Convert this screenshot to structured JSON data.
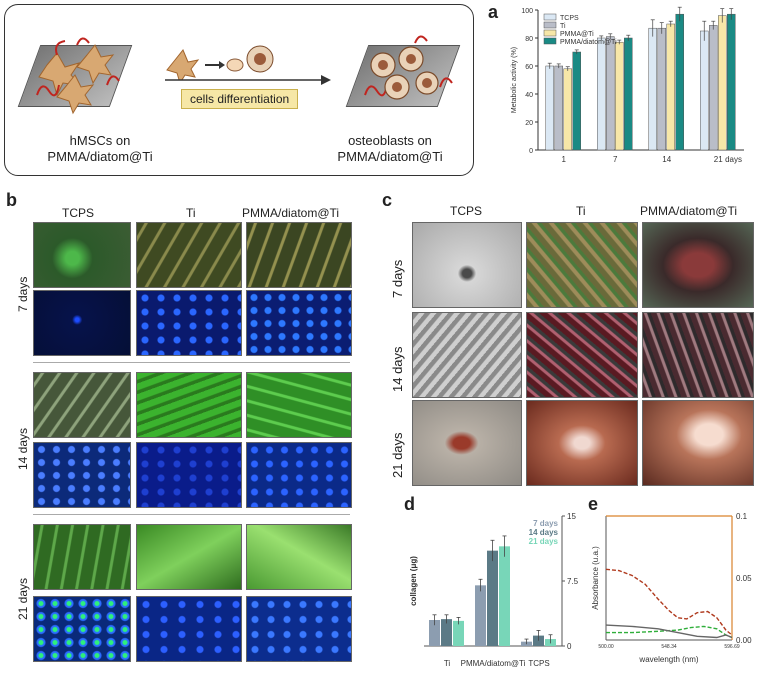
{
  "panels": {
    "a": "a",
    "b": "b",
    "c": "c",
    "d": "d",
    "e": "e"
  },
  "schematic": {
    "left_caption_line1": "hMSCs on",
    "left_caption_line2": "PMMA/diatom@Ti",
    "right_caption_line1": "osteoblasts on",
    "right_caption_line2": "PMMA/diatom@Ti",
    "process_label": "cells differentiation"
  },
  "panel_b": {
    "columns": [
      "TCPS",
      "Ti",
      "PMMA/diatom@Ti"
    ],
    "rows": [
      "7 days",
      "14 days",
      "21 days"
    ]
  },
  "panel_c": {
    "columns": [
      "TCPS",
      "Ti",
      "PMMA/diatom@Ti"
    ],
    "rows": [
      "7 days",
      "14 days",
      "21 days"
    ]
  },
  "chart_data": [
    {
      "id": "a",
      "type": "bar",
      "ylabel": "Metabolic activity (%)",
      "ylim": [
        0,
        100
      ],
      "yticks": [
        0,
        20,
        40,
        60,
        80,
        100
      ],
      "categories": [
        "1",
        "7",
        "14",
        "21"
      ],
      "x_unit": "days",
      "legend_position": "top-left",
      "series": [
        {
          "name": "TCPS",
          "color": "#dbe8f4",
          "values": [
            60,
            80,
            87,
            85
          ],
          "err": [
            2,
            1.5,
            6,
            7
          ]
        },
        {
          "name": "Ti",
          "color": "#b9bdc8",
          "values": [
            60,
            81,
            87,
            89
          ],
          "err": [
            1.5,
            2,
            4,
            3
          ]
        },
        {
          "name": "PMMA@Ti",
          "color": "#f7e7a8",
          "values": [
            58,
            77,
            90,
            96
          ],
          "err": [
            1.5,
            1.5,
            2,
            5
          ]
        },
        {
          "name": "PMMA/diatom@Ti",
          "color": "#1a8a84",
          "values": [
            70,
            80,
            97,
            97
          ],
          "err": [
            1.5,
            2,
            5,
            4
          ]
        }
      ]
    },
    {
      "id": "d",
      "type": "bar",
      "ylabel": "collagen (μg)",
      "ylim": [
        0,
        15
      ],
      "yticks": [
        "0",
        "7.5",
        "15"
      ],
      "categories": [
        "Ti",
        "PMMA/diatom@Ti",
        "TCPS"
      ],
      "legend_position": "top-right",
      "series": [
        {
          "name": "7 days",
          "color": "#8c9db0",
          "values": [
            3.0,
            7.0,
            0.5
          ],
          "err": [
            0.6,
            0.7,
            0.3
          ]
        },
        {
          "name": "14 days",
          "color": "#5b7a86",
          "values": [
            3.1,
            11.0,
            1.2
          ],
          "err": [
            0.5,
            1.2,
            0.6
          ]
        },
        {
          "name": "21 days",
          "color": "#78d6b8",
          "values": [
            2.9,
            11.5,
            0.8
          ],
          "err": [
            0.4,
            1.2,
            0.5
          ]
        }
      ]
    },
    {
      "id": "e",
      "type": "line",
      "ylabel": "Absorbance (u.a.)",
      "xlabel": "wavelength (nm)",
      "x_ticks": [
        "500.00",
        "548.34",
        "596.69"
      ],
      "xlim": [
        500,
        596.69
      ],
      "ylim": [
        0,
        0.1
      ],
      "yticks": [
        "0.00",
        "0.05",
        "0.1"
      ],
      "series": [
        {
          "color": "#b03a1e",
          "style": "dashed",
          "x": [
            500,
            510,
            520,
            530,
            540,
            548,
            555,
            562,
            570,
            578,
            585,
            592,
            596.69
          ],
          "y": [
            0.057,
            0.056,
            0.052,
            0.045,
            0.033,
            0.024,
            0.018,
            0.017,
            0.022,
            0.023,
            0.018,
            0.008,
            0.004
          ]
        },
        {
          "color": "#2fae3a",
          "style": "dashed",
          "x": [
            500,
            520,
            540,
            555,
            565,
            575,
            585,
            592,
            596.69
          ],
          "y": [
            0.006,
            0.006,
            0.007,
            0.008,
            0.01,
            0.011,
            0.009,
            0.004,
            0.002
          ]
        },
        {
          "color": "#666666",
          "style": "solid",
          "x": [
            500,
            520,
            540,
            555,
            570,
            585,
            592,
            596.69
          ],
          "y": [
            0.012,
            0.011,
            0.009,
            0.006,
            0.003,
            0.002,
            0.004,
            0.002
          ]
        }
      ]
    }
  ]
}
